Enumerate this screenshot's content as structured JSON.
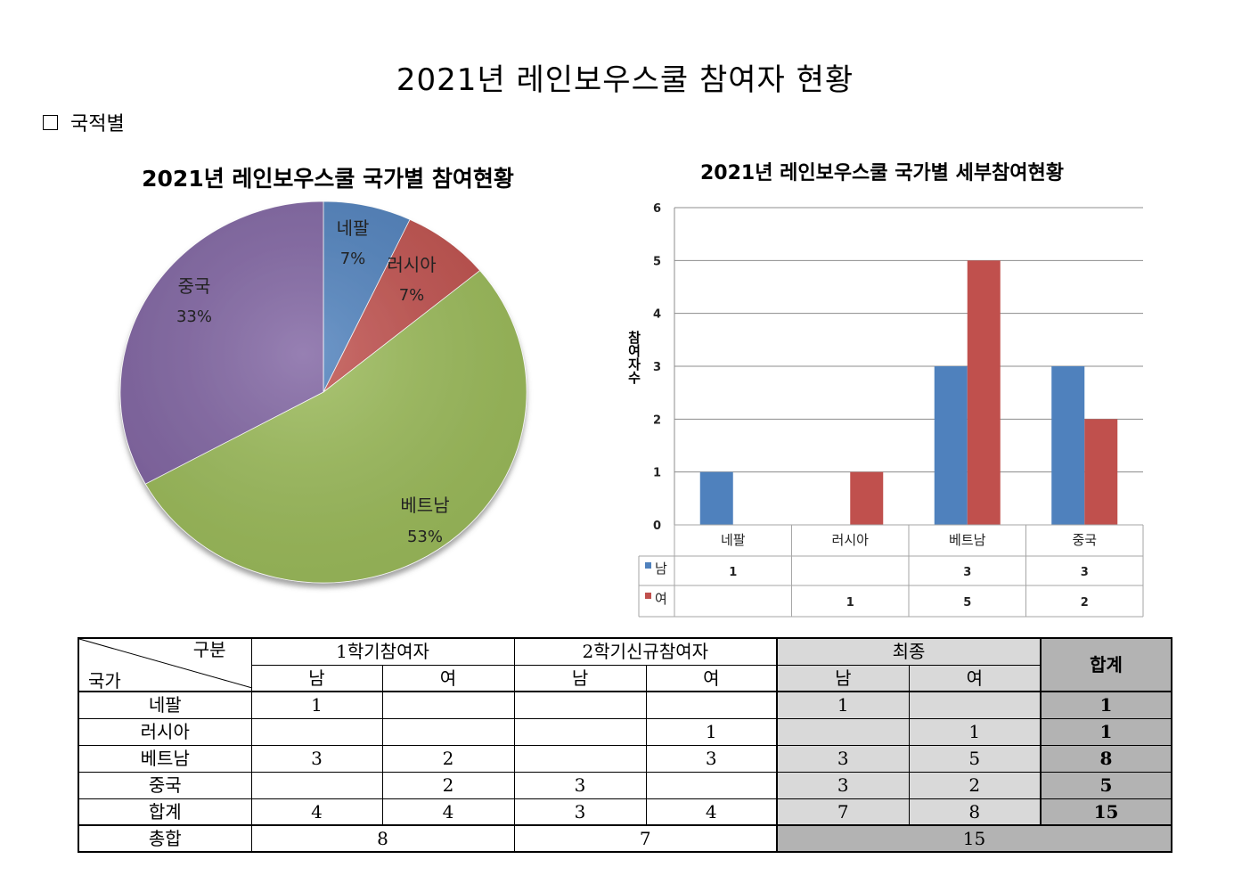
{
  "page_title": "2021년 레인보우스쿨 참여자 현황",
  "section_label": "국적별",
  "chart_data": [
    {
      "type": "pie",
      "title": "2021년 레인보우스쿨 국가별 참여현황",
      "categories": [
        "네팔",
        "러시아",
        "베트남",
        "중국"
      ],
      "values": [
        7,
        7,
        53,
        33
      ],
      "value_labels": [
        "7%",
        "7%",
        "53%",
        "33%"
      ],
      "colors": [
        "#4f81bd",
        "#c0504d",
        "#9bbb59",
        "#8064a2"
      ]
    },
    {
      "type": "bar",
      "title": "2021년 레인보우스쿨 국가별 세부참여현황",
      "xlabel": "",
      "ylabel": "참여자수",
      "categories": [
        "네팔",
        "러시아",
        "베트남",
        "중국"
      ],
      "ylim": [
        0,
        6
      ],
      "yticks": [
        "0",
        "1",
        "2",
        "3",
        "4",
        "5",
        "6"
      ],
      "grid": true,
      "legend_placement": "data-table",
      "series": [
        {
          "name": "남",
          "values": [
            1,
            null,
            3,
            3
          ],
          "labels": [
            "1",
            "",
            "3",
            "3"
          ],
          "color": "#4f81bd"
        },
        {
          "name": "여",
          "values": [
            null,
            1,
            5,
            2
          ],
          "labels": [
            "",
            "1",
            "5",
            "2"
          ],
          "color": "#c0504d"
        }
      ]
    }
  ],
  "table": {
    "corner_top": "구분",
    "corner_bottom": "국가",
    "groups": [
      "1학기참여자",
      "2학기신규참여자",
      "최종"
    ],
    "total_header": "합계",
    "sub_male": "남",
    "sub_female": "여",
    "rows": [
      {
        "country": "네팔",
        "cells": [
          "1",
          "",
          "",
          "",
          "1",
          "",
          "1"
        ]
      },
      {
        "country": "러시아",
        "cells": [
          "",
          "",
          "",
          "1",
          "",
          "1",
          "1"
        ]
      },
      {
        "country": "베트남",
        "cells": [
          "3",
          "2",
          "",
          "3",
          "3",
          "5",
          "8"
        ]
      },
      {
        "country": "중국",
        "cells": [
          "",
          "2",
          "3",
          "",
          "3",
          "2",
          "5"
        ]
      },
      {
        "country": "합계",
        "cells": [
          "4",
          "4",
          "3",
          "4",
          "7",
          "8",
          "15"
        ]
      }
    ],
    "grand": {
      "label": "총합",
      "sem1": "8",
      "sem2": "7",
      "final": "15"
    }
  }
}
